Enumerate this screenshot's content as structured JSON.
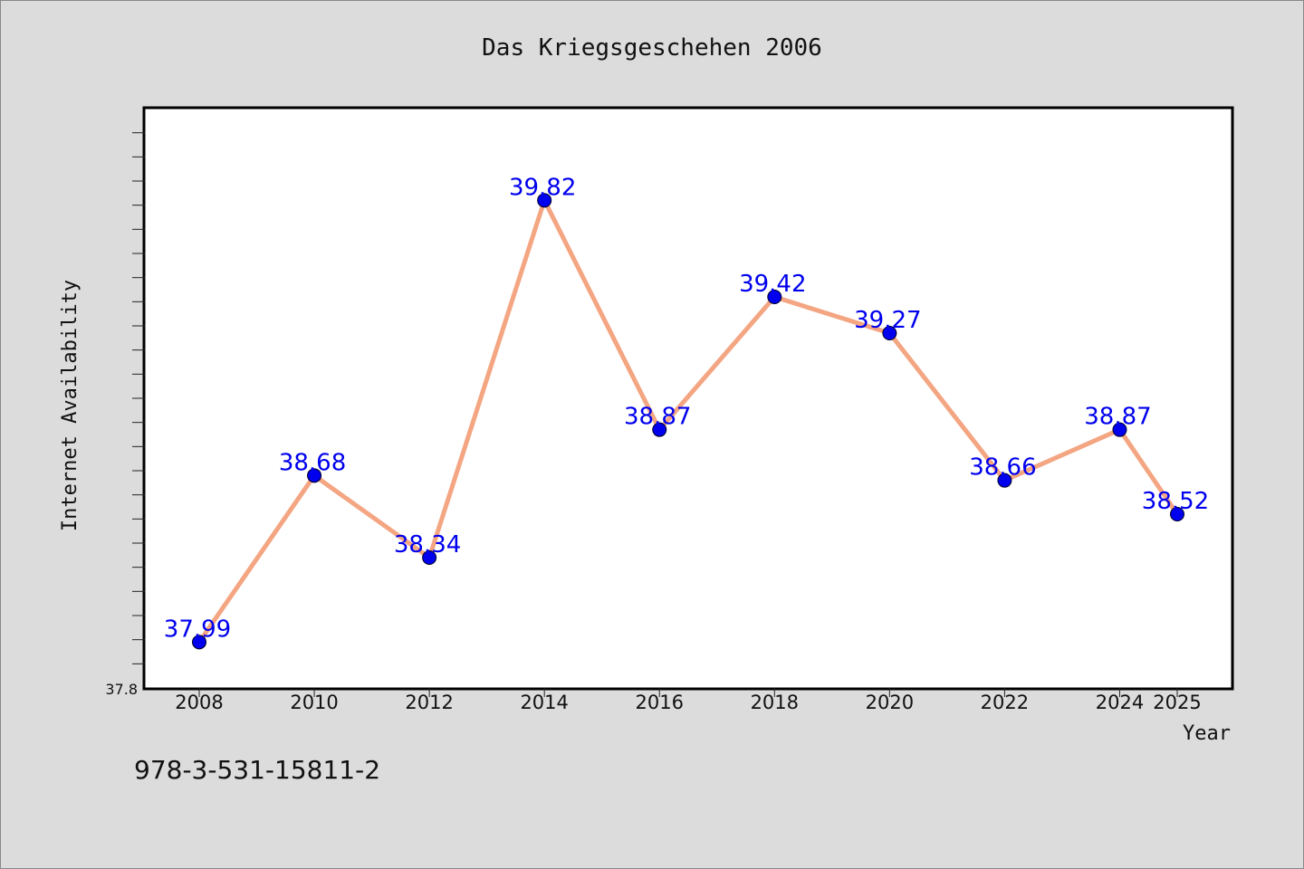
{
  "chart_data": {
    "type": "line",
    "title": "Das Kriegsgeschehen 2006",
    "xlabel": "Year",
    "ylabel": "Internet Availability",
    "x": [
      "2008",
      "2010",
      "2012",
      "2014",
      "2016",
      "2018",
      "2020",
      "2022",
      "2024",
      "2025"
    ],
    "values": [
      37.99,
      38.68,
      38.34,
      39.82,
      38.87,
      39.42,
      39.27,
      38.66,
      38.87,
      38.52
    ],
    "data_labels": [
      "37.99",
      "38.68",
      "38.34",
      "39.82",
      "38.87",
      "39.42",
      "39.27",
      "38.66",
      "38.87",
      "38.52"
    ],
    "ymin_label": "37.8",
    "ylim": [
      37.8,
      40.2
    ],
    "grid": false,
    "line_color": "#f4a582",
    "marker_color": "#0000ee",
    "label_color": "#0000ee"
  },
  "footer": {
    "code": "978-3-531-15811-2"
  }
}
